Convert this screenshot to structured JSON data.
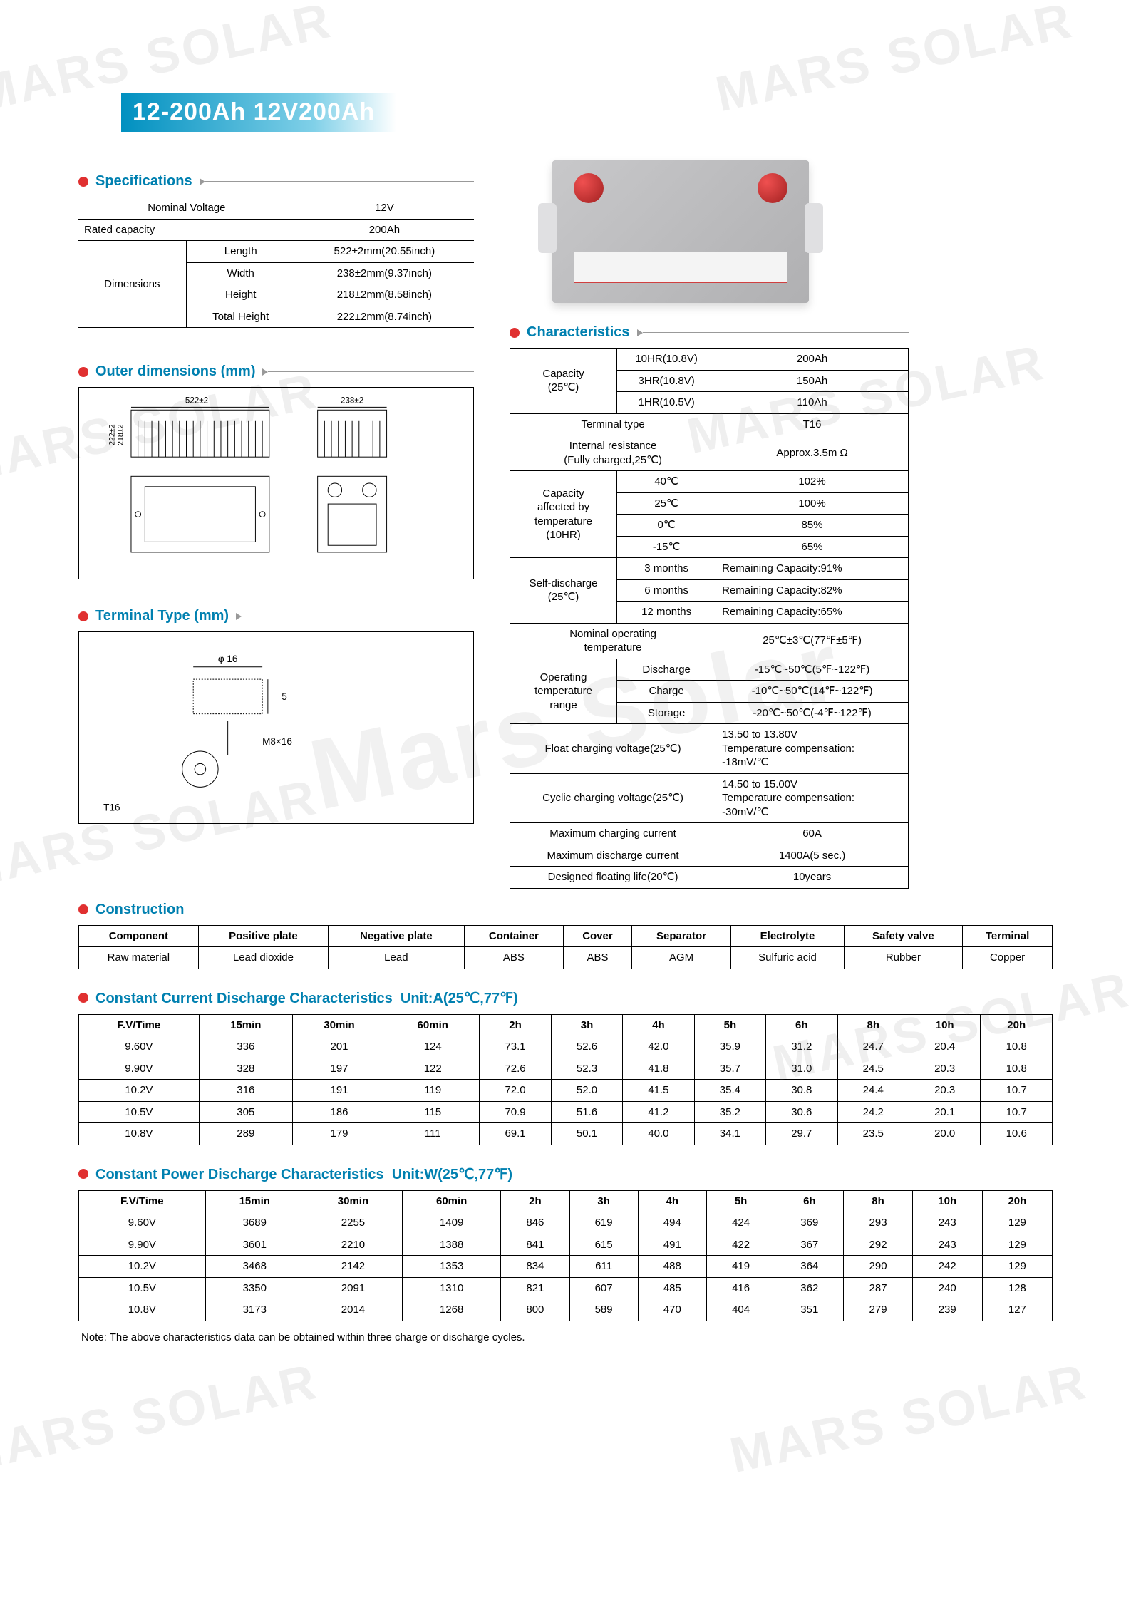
{
  "watermark_text": "MARS SOLAR",
  "title": "12-200Ah 12V200Ah",
  "sections": {
    "specs": "Specifications",
    "outer": "Outer dimensions  (mm)",
    "terminal": "Terminal Type (mm)",
    "characteristics": "Characteristics",
    "construction": "Construction",
    "ccd": "Constant Current Discharge Characteristics",
    "cpd": "Constant Power Discharge Characteristics"
  },
  "ccd_unit": "Unit:A(25℃,77℉)",
  "cpd_unit": "Unit:W(25℃,77℉)",
  "spec_table": {
    "nominal_voltage_label": "Nominal Voltage",
    "nominal_voltage": "12V",
    "rated_capacity_label": "Rated capacity",
    "rated_capacity": "200Ah",
    "dimensions_label": "Dimensions",
    "length_label": "Length",
    "length": "522±2mm(20.55inch)",
    "width_label": "Width",
    "width": "238±2mm(9.37inch)",
    "height_label": "Height",
    "height": "218±2mm(8.58inch)",
    "total_height_label": "Total Height",
    "total_height": "222±2mm(8.74inch)"
  },
  "outer_dims": {
    "l": "522±2",
    "w": "238±2",
    "h1": "222±2",
    "h2": "218±2"
  },
  "terminal": {
    "phi": "φ 16",
    "h": "5",
    "bolt": "M8×16",
    "name": "T16"
  },
  "char": {
    "capacity_label": "Capacity\n(25℃)",
    "cap_rows": [
      [
        "10HR(10.8V)",
        "200Ah"
      ],
      [
        "3HR(10.8V)",
        "150Ah"
      ],
      [
        "1HR(10.5V)",
        "110Ah"
      ]
    ],
    "terminal_type_label": "Terminal type",
    "terminal_type": "T16",
    "internal_res_label": "Internal resistance\n(Fully charged,25℃)",
    "internal_res": "Approx.3.5m Ω",
    "cap_temp_label": "Capacity\naffected by\ntemperature\n(10HR)",
    "cap_temp_rows": [
      [
        "40℃",
        "102%"
      ],
      [
        "25℃",
        "100%"
      ],
      [
        "0℃",
        "85%"
      ],
      [
        "-15℃",
        "65%"
      ]
    ],
    "self_discharge_label": "Self-discharge\n(25℃)",
    "self_rows": [
      [
        "3 months",
        "Remaining Capacity:91%"
      ],
      [
        "6 months",
        "Remaining Capacity:82%"
      ],
      [
        "12 months",
        "Remaining Capacity:65%"
      ]
    ],
    "nominal_op_label": "Nominal operating\ntemperature",
    "nominal_op": "25℃±3℃(77℉±5℉)",
    "op_temp_label": "Operating\ntemperature\nrange",
    "op_rows": [
      [
        "Discharge",
        "-15℃~50℃(5℉~122℉)"
      ],
      [
        "Charge",
        "-10℃~50℃(14℉~122℉)"
      ],
      [
        "Storage",
        "-20℃~50℃(-4℉~122℉)"
      ]
    ],
    "float_label": "Float charging voltage(25℃)",
    "float_val": "13.50 to 13.80V\nTemperature compensation:\n-18mV/℃",
    "cyclic_label": "Cyclic charging voltage(25℃)",
    "cyclic_val": "14.50 to 15.00V\nTemperature compensation:\n-30mV/℃",
    "max_charge_label": "Maximum charging current",
    "max_charge": "60A",
    "max_discharge_label": "Maximum discharge current",
    "max_discharge": "1400A(5 sec.)",
    "float_life_label": "Designed floating life(20℃)",
    "float_life": "10years"
  },
  "construction": {
    "headers": [
      "Component",
      "Positive plate",
      "Negative plate",
      "Container",
      "Cover",
      "Separator",
      "Electrolyte",
      "Safety valve",
      "Terminal"
    ],
    "row": [
      "Raw material",
      "Lead dioxide",
      "Lead",
      "ABS",
      "ABS",
      "AGM",
      "Sulfuric acid",
      "Rubber",
      "Copper"
    ]
  },
  "discharge_header": [
    "F.V/Time",
    "15min",
    "30min",
    "60min",
    "2h",
    "3h",
    "4h",
    "5h",
    "6h",
    "8h",
    "10h",
    "20h"
  ],
  "ccd_rows": [
    [
      "9.60V",
      "336",
      "201",
      "124",
      "73.1",
      "52.6",
      "42.0",
      "35.9",
      "31.2",
      "24.7",
      "20.4",
      "10.8"
    ],
    [
      "9.90V",
      "328",
      "197",
      "122",
      "72.6",
      "52.3",
      "41.8",
      "35.7",
      "31.0",
      "24.5",
      "20.3",
      "10.8"
    ],
    [
      "10.2V",
      "316",
      "191",
      "119",
      "72.0",
      "52.0",
      "41.5",
      "35.4",
      "30.8",
      "24.4",
      "20.3",
      "10.7"
    ],
    [
      "10.5V",
      "305",
      "186",
      "115",
      "70.9",
      "51.6",
      "41.2",
      "35.2",
      "30.6",
      "24.2",
      "20.1",
      "10.7"
    ],
    [
      "10.8V",
      "289",
      "179",
      "111",
      "69.1",
      "50.1",
      "40.0",
      "34.1",
      "29.7",
      "23.5",
      "20.0",
      "10.6"
    ]
  ],
  "cpd_rows": [
    [
      "9.60V",
      "3689",
      "2255",
      "1409",
      "846",
      "619",
      "494",
      "424",
      "369",
      "293",
      "243",
      "129"
    ],
    [
      "9.90V",
      "3601",
      "2210",
      "1388",
      "841",
      "615",
      "491",
      "422",
      "367",
      "292",
      "243",
      "129"
    ],
    [
      "10.2V",
      "3468",
      "2142",
      "1353",
      "834",
      "611",
      "488",
      "419",
      "364",
      "290",
      "242",
      "129"
    ],
    [
      "10.5V",
      "3350",
      "2091",
      "1310",
      "821",
      "607",
      "485",
      "416",
      "362",
      "287",
      "240",
      "128"
    ],
    [
      "10.8V",
      "3173",
      "2014",
      "1268",
      "800",
      "589",
      "470",
      "404",
      "351",
      "279",
      "239",
      "127"
    ]
  ],
  "note": "Note: The above characteristics data can be obtained within three charge or discharge cycles."
}
